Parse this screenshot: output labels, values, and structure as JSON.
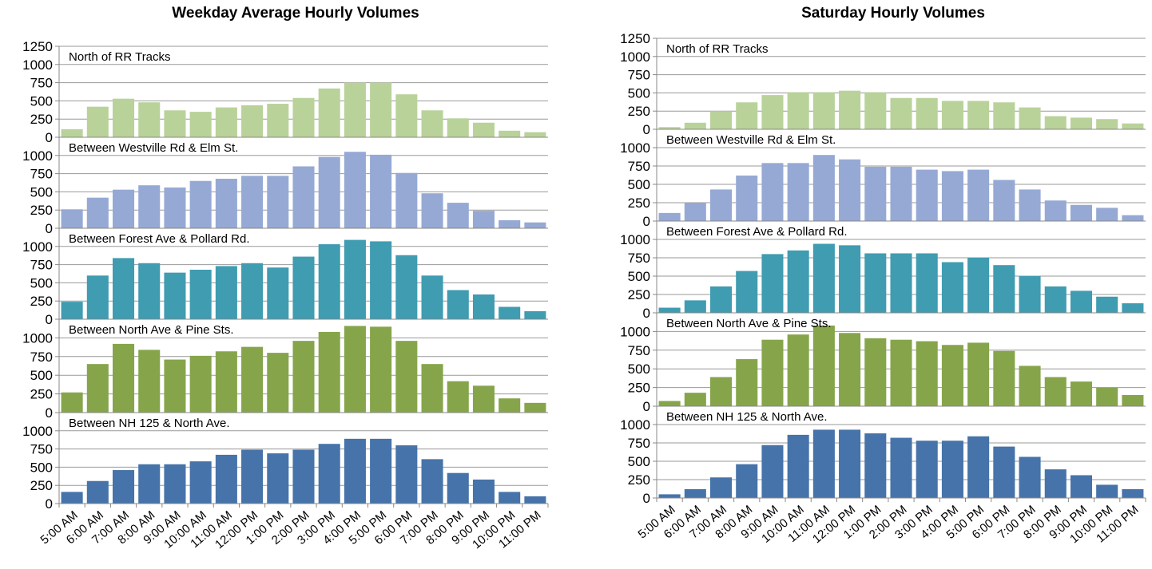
{
  "chart_data": [
    {
      "type": "bar",
      "title": "Weekday Average Hourly Volumes",
      "categories": [
        "5:00 AM",
        "6:00 AM",
        "7:00 AM",
        "8:00 AM",
        "9:00 AM",
        "10:00 AM",
        "11:00 AM",
        "12:00 PM",
        "1:00 PM",
        "2:00 PM",
        "3:00 PM",
        "4:00 PM",
        "5:00 PM",
        "6:00 PM",
        "7:00 PM",
        "8:00 PM",
        "9:00 PM",
        "10:00 PM",
        "11:00 PM"
      ],
      "ylim": [
        0,
        1250
      ],
      "grid": true,
      "series": [
        {
          "name": "North of RR Tracks",
          "color": "#b9d29a",
          "yticks": [
            0,
            250,
            500,
            750,
            1000,
            1250
          ],
          "values": [
            110,
            420,
            530,
            480,
            370,
            350,
            410,
            440,
            460,
            540,
            670,
            750,
            750,
            590,
            370,
            260,
            200,
            90,
            70
          ]
        },
        {
          "name": "Between Westville Rd & Elm St.",
          "color": "#96a9d5",
          "yticks": [
            0,
            250,
            500,
            750,
            1000
          ],
          "values": [
            260,
            420,
            530,
            590,
            560,
            650,
            680,
            720,
            720,
            850,
            980,
            1050,
            1010,
            760,
            480,
            350,
            240,
            110,
            80
          ]
        },
        {
          "name": "Between Forest Ave & Pollard Rd.",
          "color": "#3f9cb1",
          "yticks": [
            0,
            250,
            500,
            750,
            1000
          ],
          "values": [
            240,
            600,
            840,
            770,
            640,
            680,
            730,
            770,
            710,
            860,
            1030,
            1090,
            1070,
            880,
            600,
            400,
            340,
            170,
            110
          ]
        },
        {
          "name": "Between North Ave & Pine Sts.",
          "color": "#86a54b",
          "yticks": [
            0,
            250,
            500,
            750,
            1000
          ],
          "values": [
            270,
            650,
            920,
            840,
            710,
            760,
            820,
            880,
            800,
            960,
            1080,
            1160,
            1150,
            960,
            650,
            420,
            360,
            190,
            130
          ]
        },
        {
          "name": "Between NH 125 & North Ave.",
          "color": "#4673a9",
          "yticks": [
            0,
            250,
            500,
            750,
            1000
          ],
          "values": [
            160,
            310,
            460,
            540,
            540,
            580,
            670,
            740,
            690,
            740,
            820,
            890,
            890,
            800,
            610,
            420,
            330,
            160,
            100
          ]
        }
      ]
    },
    {
      "type": "bar",
      "title": "Saturday Hourly Volumes",
      "categories": [
        "5:00 AM",
        "6:00 AM",
        "7:00 AM",
        "8:00 AM",
        "9:00 AM",
        "10:00 AM",
        "11:00 AM",
        "12:00 PM",
        "1:00 PM",
        "2:00 PM",
        "3:00 PM",
        "4:00 PM",
        "5:00 PM",
        "6:00 PM",
        "7:00 PM",
        "8:00 PM",
        "9:00 PM",
        "10:00 PM",
        "11:00 PM"
      ],
      "ylim": [
        0,
        1250
      ],
      "grid": true,
      "series": [
        {
          "name": "North of RR Tracks",
          "color": "#b9d29a",
          "yticks": [
            0,
            250,
            500,
            750,
            1000,
            1250
          ],
          "values": [
            30,
            90,
            250,
            370,
            470,
            510,
            510,
            530,
            510,
            430,
            430,
            390,
            390,
            370,
            300,
            180,
            160,
            140,
            80
          ]
        },
        {
          "name": "Between Westville Rd & Elm St.",
          "color": "#96a9d5",
          "yticks": [
            0,
            250,
            500,
            750,
            1000
          ],
          "values": [
            110,
            250,
            430,
            620,
            790,
            790,
            900,
            840,
            740,
            740,
            700,
            680,
            700,
            560,
            430,
            280,
            220,
            180,
            80
          ]
        },
        {
          "name": "Between Forest Ave & Pollard Rd.",
          "color": "#3f9cb1",
          "yticks": [
            0,
            250,
            500,
            750,
            1000
          ],
          "values": [
            70,
            170,
            360,
            570,
            800,
            850,
            940,
            920,
            810,
            810,
            810,
            690,
            750,
            650,
            500,
            360,
            300,
            220,
            130
          ]
        },
        {
          "name": "Between North Ave & Pine Sts.",
          "color": "#86a54b",
          "yticks": [
            0,
            250,
            500,
            750,
            1000
          ],
          "values": [
            70,
            180,
            390,
            630,
            890,
            960,
            1080,
            980,
            910,
            890,
            870,
            820,
            850,
            740,
            540,
            390,
            330,
            250,
            150
          ]
        },
        {
          "name": "Between NH 125 & North Ave.",
          "color": "#4673a9",
          "yticks": [
            0,
            250,
            500,
            750,
            1000
          ],
          "values": [
            50,
            120,
            280,
            460,
            720,
            860,
            930,
            930,
            880,
            820,
            780,
            780,
            840,
            700,
            560,
            390,
            310,
            180,
            120
          ]
        }
      ]
    }
  ]
}
